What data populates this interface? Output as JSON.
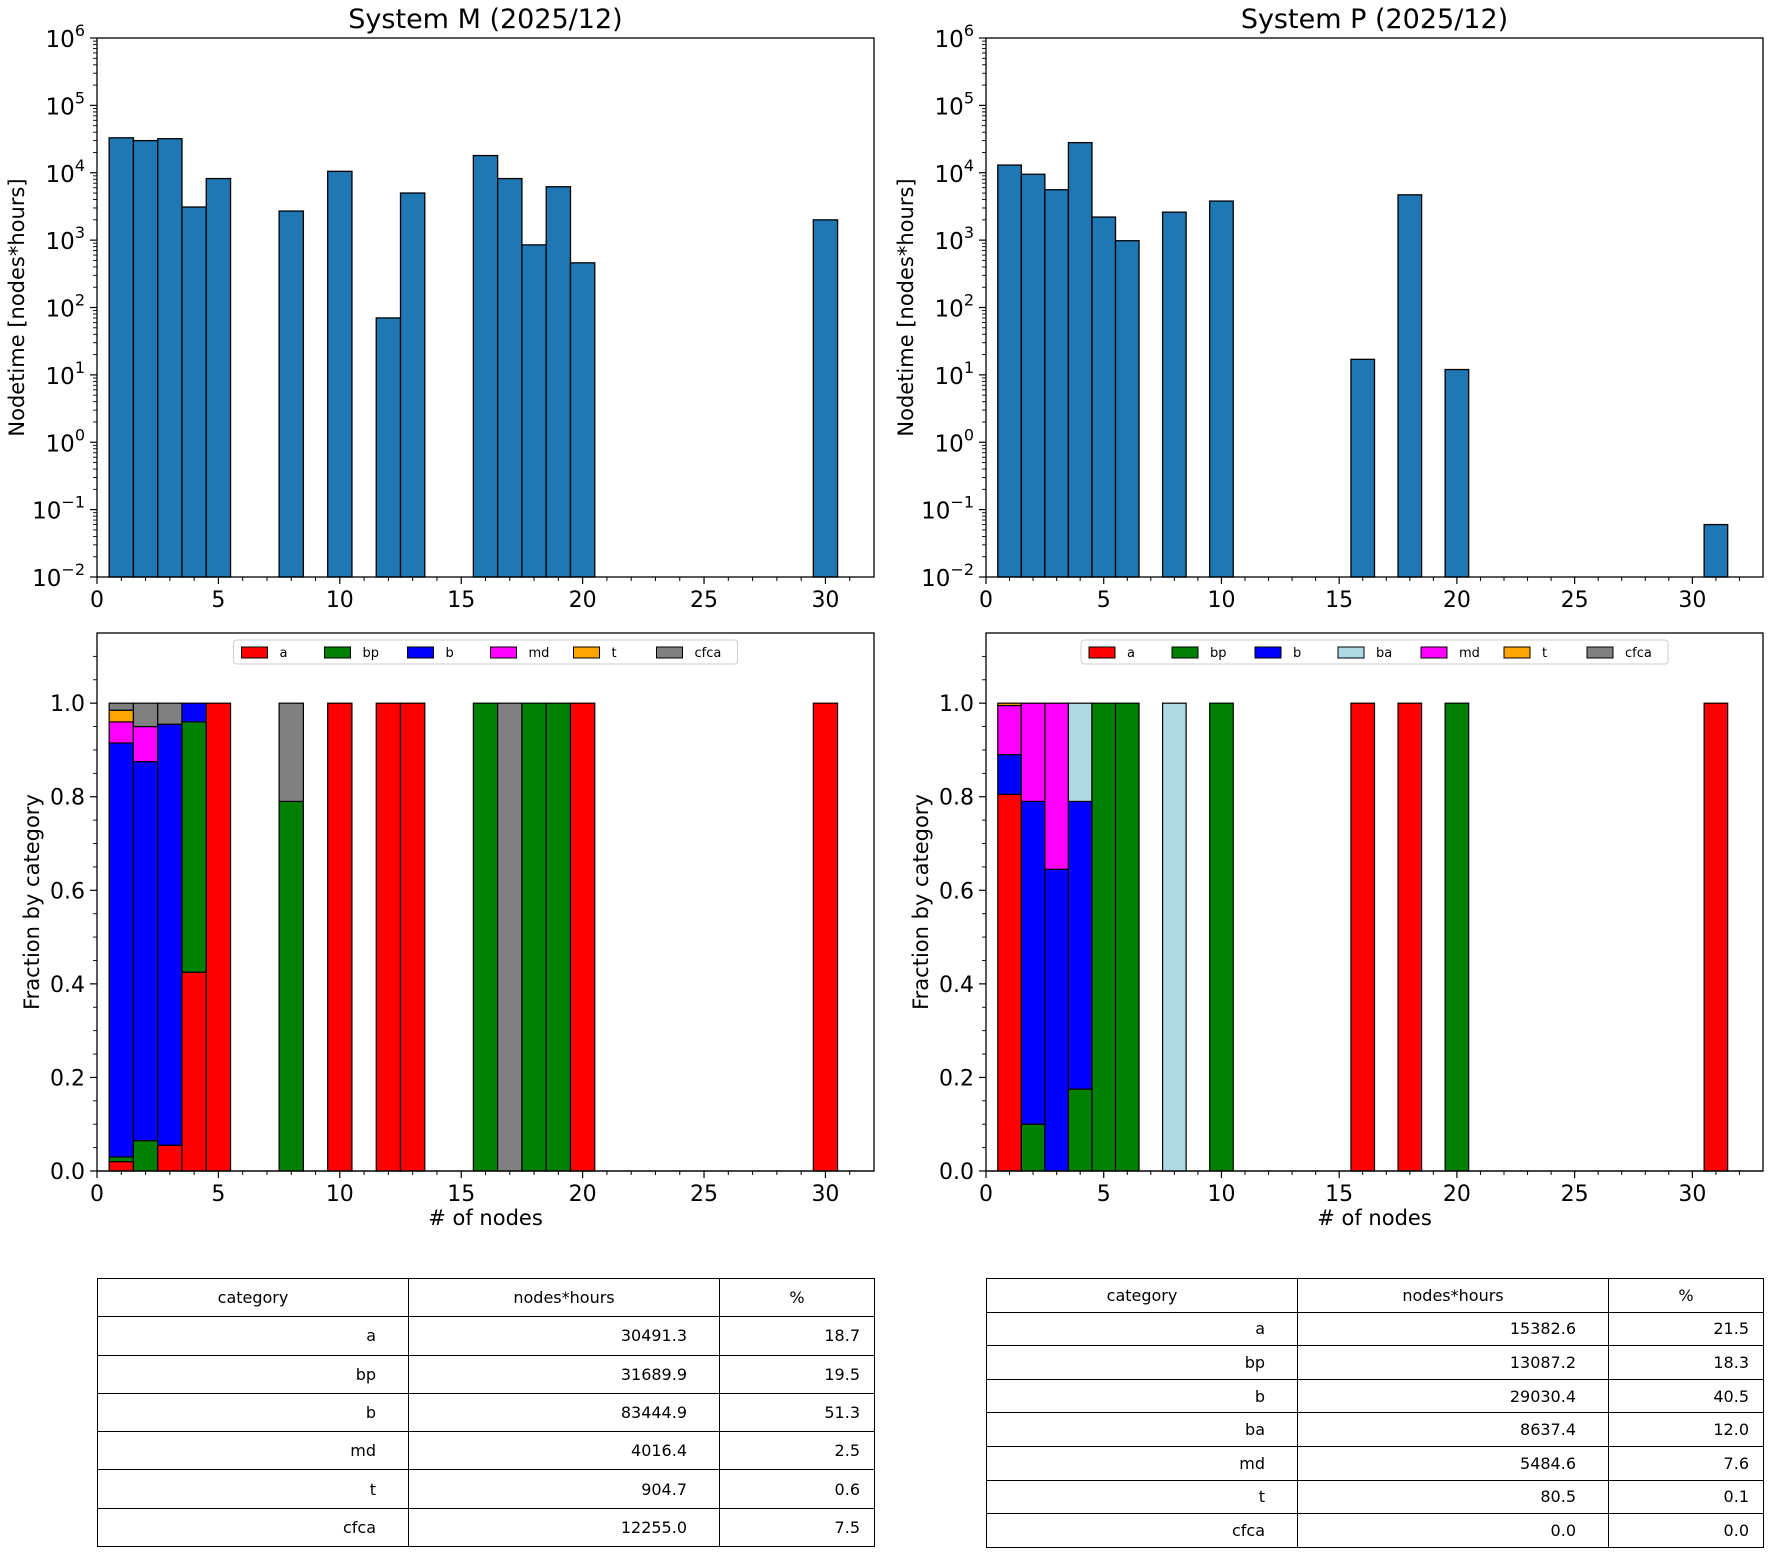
{
  "chart_data": [
    {
      "id": "hist_M",
      "type": "bar",
      "title": "System M (2025/12)",
      "xlabel": "",
      "ylabel": "Nodetime [nodes*hours]",
      "yscale": "log",
      "xlim": [
        0,
        32
      ],
      "ylim": [
        0.01,
        1000000
      ],
      "xticks": [
        "0",
        "5",
        "10",
        "15",
        "20",
        "25",
        "30"
      ],
      "x": [
        1,
        2,
        3,
        4,
        5,
        8,
        10,
        12,
        13,
        16,
        17,
        18,
        19,
        20,
        30
      ],
      "values": [
        33000,
        30000,
        32000,
        3100,
        8200,
        2700,
        10500,
        70,
        5000,
        18000,
        8200,
        850,
        6200,
        460,
        2000
      ]
    },
    {
      "id": "hist_P",
      "type": "bar",
      "title": "System P (2025/12)",
      "xlabel": "",
      "ylabel": "Nodetime [nodes*hours]",
      "yscale": "log",
      "xlim": [
        0,
        33
      ],
      "ylim": [
        0.01,
        1000000
      ],
      "xticks": [
        "0",
        "5",
        "10",
        "15",
        "20",
        "25",
        "30"
      ],
      "x": [
        1,
        2,
        3,
        4,
        5,
        6,
        8,
        10,
        16,
        18,
        20,
        31
      ],
      "values": [
        13000,
        9500,
        5600,
        28000,
        2200,
        980,
        2600,
        3800,
        17,
        4700,
        12,
        0.06
      ]
    },
    {
      "id": "frac_M",
      "type": "bar",
      "stacked": true,
      "title": "",
      "xlabel": "# of nodes",
      "ylabel": "Fraction by category",
      "xlim": [
        0,
        32
      ],
      "ylim": [
        0,
        1.15
      ],
      "xticks": [
        "0",
        "5",
        "10",
        "15",
        "20",
        "25",
        "30"
      ],
      "yticks": [
        "0.0",
        "0.2",
        "0.4",
        "0.6",
        "0.8",
        "1.0"
      ],
      "legend_position": "top-center",
      "x": [
        1,
        2,
        3,
        4,
        5,
        8,
        10,
        12,
        13,
        16,
        17,
        18,
        19,
        20,
        30
      ],
      "series": [
        {
          "name": "a",
          "color": "#ff0000",
          "values": [
            0.02,
            0,
            0.055,
            0.425,
            1,
            0,
            1,
            1,
            1,
            0,
            0,
            0,
            0,
            1,
            1
          ]
        },
        {
          "name": "bp",
          "color": "#008000",
          "values": [
            0.01,
            0.065,
            0,
            0.535,
            0,
            0.79,
            0,
            0,
            0,
            1,
            0,
            1,
            1,
            0,
            0
          ]
        },
        {
          "name": "b",
          "color": "#0000ff",
          "values": [
            0.885,
            0.81,
            0.9,
            0.04,
            0,
            0,
            0,
            0,
            0,
            0,
            0,
            0,
            0,
            0,
            0
          ]
        },
        {
          "name": "md",
          "color": "#ff00ff",
          "values": [
            0.045,
            0.075,
            0,
            0,
            0,
            0,
            0,
            0,
            0,
            0,
            0,
            0,
            0,
            0,
            0
          ]
        },
        {
          "name": "t",
          "color": "#ffa500",
          "values": [
            0.025,
            0,
            0,
            0,
            0,
            0,
            0,
            0,
            0,
            0,
            0,
            0,
            0,
            0,
            0
          ]
        },
        {
          "name": "cfca",
          "color": "#808080",
          "values": [
            0.015,
            0.05,
            0.045,
            0,
            0,
            0.21,
            0,
            0,
            0,
            0,
            1,
            0,
            0,
            0,
            0
          ]
        }
      ]
    },
    {
      "id": "frac_P",
      "type": "bar",
      "stacked": true,
      "title": "",
      "xlabel": "# of nodes",
      "ylabel": "Fraction by category",
      "xlim": [
        0,
        33
      ],
      "ylim": [
        0,
        1.15
      ],
      "xticks": [
        "0",
        "5",
        "10",
        "15",
        "20",
        "25",
        "30"
      ],
      "yticks": [
        "0.0",
        "0.2",
        "0.4",
        "0.6",
        "0.8",
        "1.0"
      ],
      "legend_position": "top-center",
      "x": [
        1,
        2,
        3,
        4,
        5,
        6,
        8,
        10,
        16,
        18,
        20,
        31
      ],
      "series": [
        {
          "name": "a",
          "color": "#ff0000",
          "values": [
            0.805,
            0,
            0,
            0,
            0,
            0,
            0,
            0,
            1,
            1,
            0,
            1
          ]
        },
        {
          "name": "bp",
          "color": "#008000",
          "values": [
            0,
            0.1,
            0,
            0.175,
            1,
            1,
            0,
            1,
            0,
            0,
            1,
            0
          ]
        },
        {
          "name": "b",
          "color": "#0000ff",
          "values": [
            0.085,
            0.69,
            0.645,
            0.615,
            0,
            0,
            0,
            0,
            0,
            0,
            0,
            0
          ]
        },
        {
          "name": "ba",
          "color": "#add8e6",
          "values": [
            0,
            0,
            0,
            0.21,
            0,
            0,
            1,
            0,
            0,
            0,
            0,
            0
          ]
        },
        {
          "name": "md",
          "color": "#ff00ff",
          "values": [
            0.105,
            0.21,
            0.355,
            0,
            0,
            0,
            0,
            0,
            0,
            0,
            0,
            0
          ]
        },
        {
          "name": "t",
          "color": "#ffa500",
          "values": [
            0.005,
            0,
            0,
            0,
            0,
            0,
            0,
            0,
            0,
            0,
            0,
            0
          ]
        },
        {
          "name": "cfca",
          "color": "#808080",
          "values": [
            0,
            0,
            0,
            0,
            0,
            0,
            0,
            0,
            0,
            0,
            0,
            0
          ]
        }
      ]
    },
    {
      "id": "table_M",
      "type": "table",
      "columns": [
        "category",
        "nodes*hours",
        "%"
      ],
      "rows": [
        [
          "a",
          "30491.3",
          "18.7"
        ],
        [
          "bp",
          "31689.9",
          "19.5"
        ],
        [
          "b",
          "83444.9",
          "51.3"
        ],
        [
          "md",
          "4016.4",
          "2.5"
        ],
        [
          "t",
          "904.7",
          "0.6"
        ],
        [
          "cfca",
          "12255.0",
          "7.5"
        ]
      ]
    },
    {
      "id": "table_P",
      "type": "table",
      "columns": [
        "category",
        "nodes*hours",
        "%"
      ],
      "rows": [
        [
          "a",
          "15382.6",
          "21.5"
        ],
        [
          "bp",
          "13087.2",
          "18.3"
        ],
        [
          "b",
          "29030.4",
          "40.5"
        ],
        [
          "ba",
          "8637.4",
          "12.0"
        ],
        [
          "md",
          "5484.6",
          "7.6"
        ],
        [
          "t",
          "80.5",
          "0.1"
        ],
        [
          "cfca",
          "0.0",
          "0.0"
        ]
      ]
    }
  ],
  "colors": {
    "hist_bar": "#1f77b4",
    "edge": "#000000"
  }
}
